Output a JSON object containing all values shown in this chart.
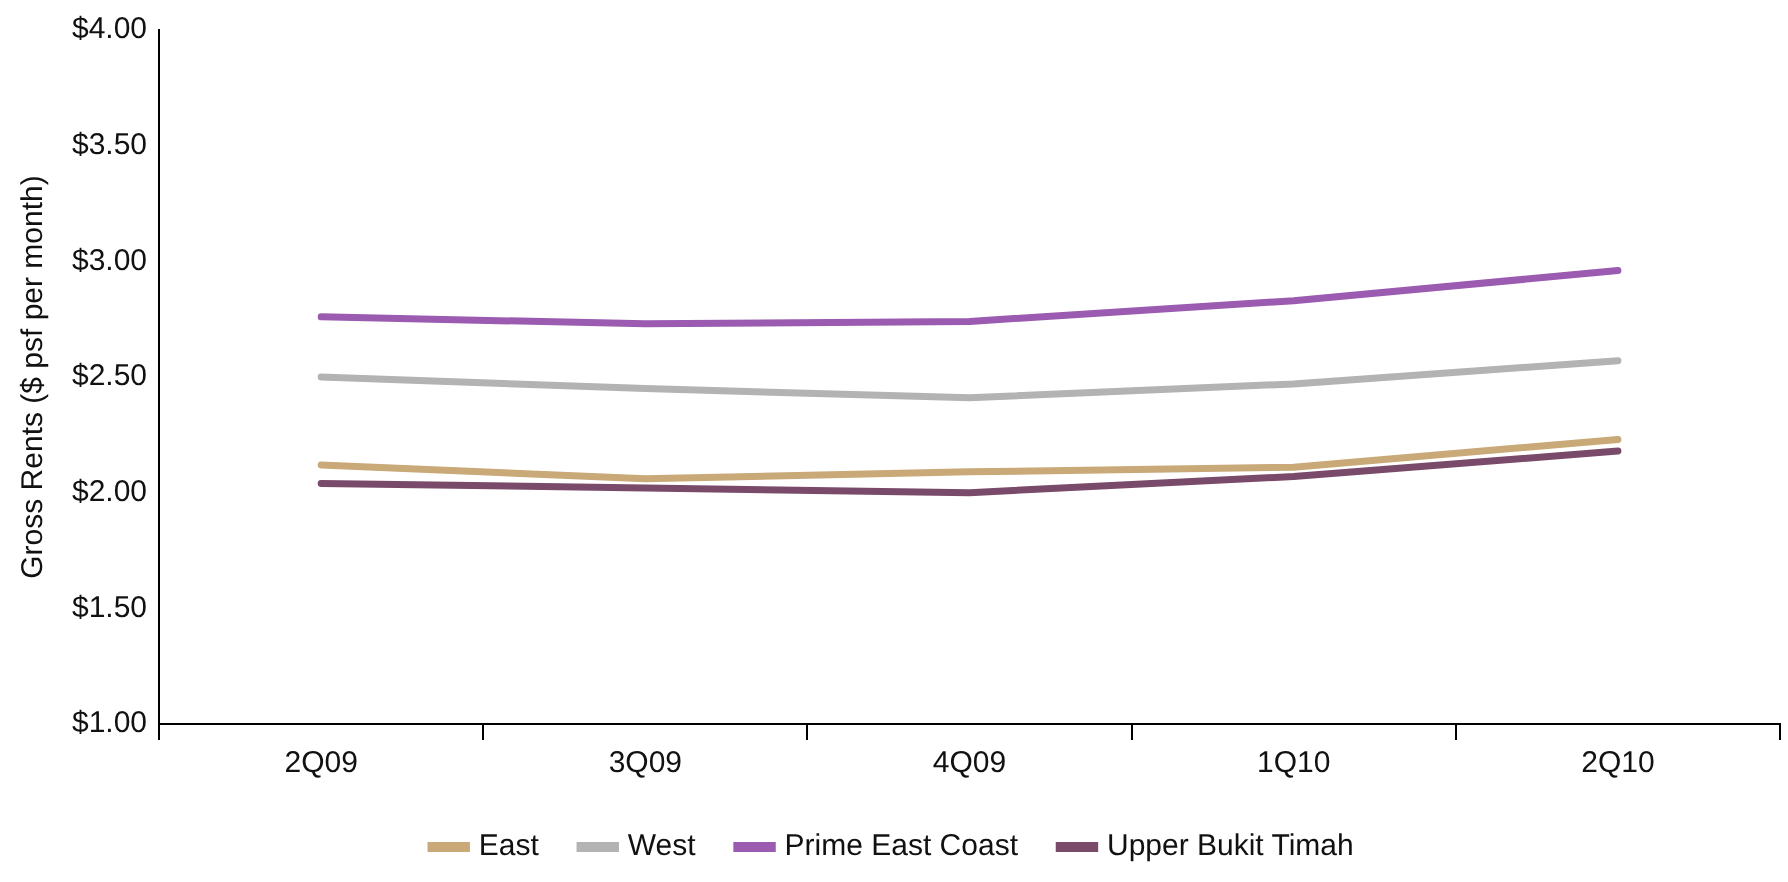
{
  "chart_data": {
    "type": "line",
    "ylabel": "Gross Rents ($ psf per month)",
    "categories": [
      "2Q09",
      "3Q09",
      "4Q09",
      "1Q10",
      "2Q10"
    ],
    "series": [
      {
        "name": "East",
        "color": "#c8a977",
        "values": [
          2.12,
          2.06,
          2.09,
          2.11,
          2.23
        ]
      },
      {
        "name": "West",
        "color": "#b3b3b3",
        "values": [
          2.5,
          2.45,
          2.41,
          2.47,
          2.57
        ]
      },
      {
        "name": "Prime East Coast",
        "color": "#9a5bb0",
        "values": [
          2.76,
          2.73,
          2.74,
          2.83,
          2.96
        ]
      },
      {
        "name": "Upper Bukit Timah",
        "color": "#7a4a6a",
        "values": [
          2.04,
          2.02,
          2.0,
          2.07,
          2.18
        ]
      }
    ],
    "ylim": [
      1,
      4
    ],
    "yticks": [
      {
        "value": 1,
        "label": "$1.00"
      },
      {
        "value": 1.5,
        "label": "$1.50"
      },
      {
        "value": 2,
        "label": "$2.00"
      },
      {
        "value": 2.5,
        "label": "$2.50"
      },
      {
        "value": 3,
        "label": "$3.00"
      },
      {
        "value": 3.5,
        "label": "$3.50"
      },
      {
        "value": 4,
        "label": "$4.00"
      }
    ],
    "grid": false,
    "legend": "bottom",
    "marker": "none",
    "line_style": "solid"
  }
}
